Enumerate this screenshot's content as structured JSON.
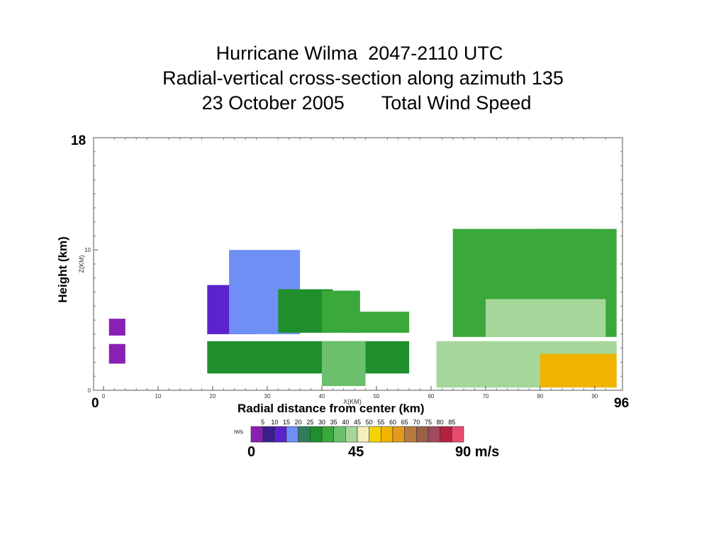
{
  "title": {
    "line1": "Hurricane Wilma  2047-2110 UTC",
    "line2": "Radial-vertical cross-section along azimuth 135",
    "line3": "23 October 2005       Total Wind Speed"
  },
  "overlay_labels": {
    "y_max": "18",
    "x_min": "0",
    "x_max": "96",
    "y_title": "Height (km)",
    "x_title": "Radial distance from center (km)"
  },
  "chart_data": {
    "type": "heatmap",
    "title": "Hurricane Wilma  2047-2110 UTC / Radial-vertical cross-section along azimuth 135 / 23 October 2005 Total Wind Speed",
    "xlabel": "X(KM)",
    "ylabel": "Z(KM)",
    "xlim": [
      0,
      93
    ],
    "ylim": [
      0,
      18
    ],
    "x_ticks": [
      "0",
      "10",
      "20",
      "30",
      "40",
      "50",
      "60",
      "70",
      "80",
      "90"
    ],
    "y_ticks": [
      "0",
      "10"
    ],
    "units": "m/s",
    "colorbar_ticks": [
      "5",
      "10",
      "15",
      "20",
      "25",
      "30",
      "35",
      "40",
      "45",
      "50",
      "55",
      "60",
      "65",
      "70",
      "75",
      "80",
      "85"
    ],
    "colorbar_colors": [
      "#8a1fb4",
      "#3a1e8c",
      "#5a23cc",
      "#6f8ff5",
      "#2f7d5a",
      "#1f8f2e",
      "#3aa83a",
      "#6cc06c",
      "#a5d69a",
      "#f3eebc",
      "#f2d200",
      "#f0b400",
      "#e59a1e",
      "#b77a3e",
      "#996045",
      "#a04a60",
      "#b42040",
      "#e84a6e"
    ],
    "colorbar_summary": [
      "0",
      "45",
      "90 m/s"
    ],
    "cells": [
      {
        "x0": 1,
        "x1": 4,
        "z0": 3.9,
        "z1": 5.1,
        "speed": 2
      },
      {
        "x0": 1,
        "x1": 4,
        "z0": 1.9,
        "z1": 3.3,
        "speed": 2
      },
      {
        "x0": 19,
        "x1": 28,
        "z0": 4.0,
        "z1": 7.5,
        "speed": 12
      },
      {
        "x0": 23,
        "x1": 36,
        "z0": 4.0,
        "z1": 10.0,
        "speed": 17
      },
      {
        "x0": 32,
        "x1": 42,
        "z0": 4.1,
        "z1": 7.2,
        "speed": 27
      },
      {
        "x0": 40,
        "x1": 47,
        "z0": 4.1,
        "z1": 7.1,
        "speed": 32
      },
      {
        "x0": 45,
        "x1": 56,
        "z0": 4.1,
        "z1": 5.6,
        "speed": 30
      },
      {
        "x0": 19,
        "x1": 56,
        "z0": 1.2,
        "z1": 3.5,
        "speed": 27
      },
      {
        "x0": 40,
        "x1": 48,
        "z0": 0.3,
        "z1": 3.5,
        "speed": 35
      },
      {
        "x0": 64,
        "x1": 94,
        "z0": 3.8,
        "z1": 11.5,
        "speed": 32
      },
      {
        "x0": 79,
        "x1": 90,
        "z0": 7.0,
        "z1": 11.5,
        "speed": 30
      },
      {
        "x0": 70,
        "x1": 92,
        "z0": 3.8,
        "z1": 6.5,
        "speed": 42
      },
      {
        "x0": 61,
        "x1": 94,
        "z0": 0.2,
        "z1": 3.5,
        "speed": 44
      },
      {
        "x0": 80,
        "x1": 94,
        "z0": 0.2,
        "z1": 2.6,
        "speed": 55
      }
    ]
  }
}
